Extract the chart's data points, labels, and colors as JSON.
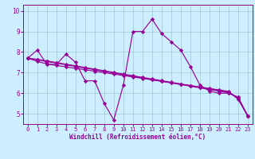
{
  "bg_color": "#cceeff",
  "line_color": "#990099",
  "grid_color": "#99cccc",
  "xlim": [
    -0.5,
    23.5
  ],
  "ylim": [
    4.5,
    10.3
  ],
  "yticks": [
    5,
    6,
    7,
    8,
    9
  ],
  "ytick_top_label": "10",
  "xticks": [
    0,
    1,
    2,
    3,
    4,
    5,
    6,
    7,
    8,
    9,
    10,
    11,
    12,
    13,
    14,
    15,
    16,
    17,
    18,
    19,
    20,
    21,
    22,
    23
  ],
  "xlabel": "Windchill (Refroidissement éolien,°C)",
  "series": [
    [
      7.7,
      8.1,
      7.4,
      7.4,
      7.9,
      7.5,
      6.6,
      6.6,
      5.5,
      4.7,
      6.4,
      9.0,
      9.0,
      9.6,
      8.9,
      8.5,
      8.1,
      7.3,
      6.4,
      6.1,
      6.0,
      6.0,
      5.8,
      4.9
    ],
    [
      7.7,
      7.55,
      7.42,
      7.35,
      7.28,
      7.21,
      7.14,
      7.07,
      7.0,
      6.93,
      6.86,
      6.79,
      6.72,
      6.65,
      6.58,
      6.51,
      6.44,
      6.37,
      6.3,
      6.23,
      6.16,
      6.09,
      5.7,
      4.9
    ],
    [
      7.7,
      7.62,
      7.54,
      7.46,
      7.38,
      7.3,
      7.22,
      7.14,
      7.06,
      6.98,
      6.9,
      6.82,
      6.74,
      6.66,
      6.58,
      6.5,
      6.42,
      6.34,
      6.26,
      6.18,
      6.1,
      6.02,
      5.8,
      4.9
    ],
    [
      7.7,
      7.65,
      7.57,
      7.49,
      7.41,
      7.33,
      7.25,
      7.17,
      7.09,
      7.01,
      6.93,
      6.85,
      6.77,
      6.69,
      6.61,
      6.53,
      6.45,
      6.37,
      6.29,
      6.21,
      6.13,
      6.05,
      5.75,
      4.9
    ]
  ],
  "marker": "D",
  "markersize": 2.2,
  "linewidth": 0.85,
  "tick_fontsize": 5.0,
  "xlabel_fontsize": 5.5
}
